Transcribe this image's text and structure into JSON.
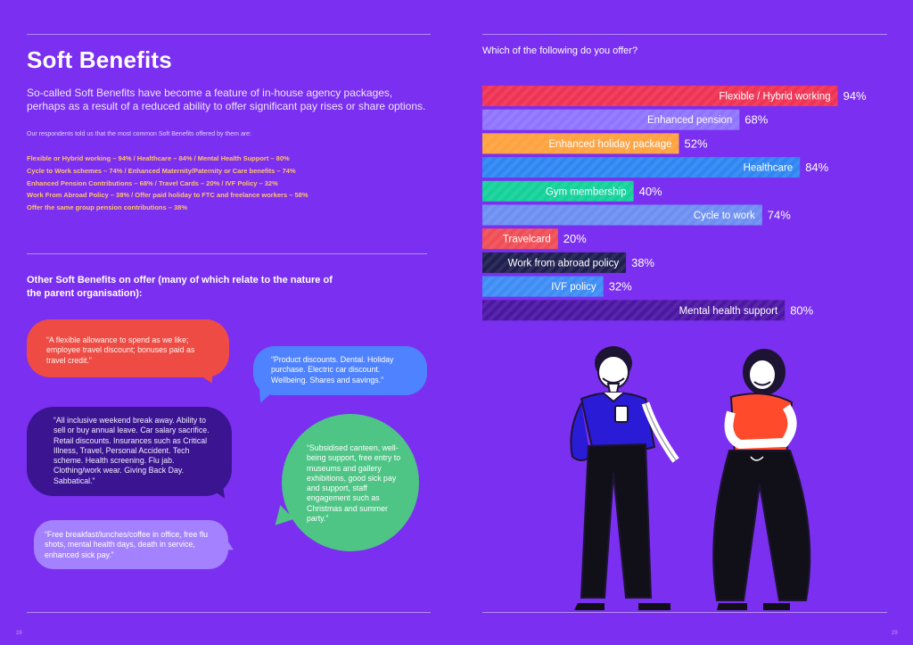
{
  "page": {
    "title": "Soft Benefits",
    "intro": "So-called Soft Benefits have become a feature of in-house agency packages, perhaps as a result of a reduced ability to offer significant pay rises or share options.",
    "respondents_note": "Our respondents told us that the most common Soft Benefits offered by them are:",
    "stats_lines": [
      "Flexible or Hybrid working – 94% / Healthcare – 84% / Mental Health Support – 80%",
      "Cycle to Work schemes – 74% / Enhanced Maternity/Paternity or Care benefits – 74%",
      "Enhanced Pension Contributions – 68% / Travel Cards – 20% / IVF Policy – 32%",
      "Work From Abroad Policy – 38% / Offer paid holiday to FTC and freelance workers – 58%",
      "Offer the same group pension contributions – 38%"
    ],
    "other_heading": "Other Soft Benefits on offer (many of which relate to the nature of the parent organisation):",
    "quotes": [
      "“A flexible allowance to spend as we like; employee travel discount; bonuses paid as travel credit.”",
      "“Product discounts. Dental. Holiday purchase. Electric car discount. Wellbeing. Shares and savings.”",
      "“All inclusive weekend break away. Ability to sell or buy annual leave. Car salary sacrifice. Retail discounts. Insurances such as Critical Illness, Travel, Personal Accident. Tech scheme. Health screening. Flu jab. Clothing/work wear. Giving Back Day. Sabbatical.”",
      "“Subsidised canteen, well-being support, free entry to museums and gallery exhibitions, good sick pay and support, staff engagement such as Christmas and summer party.”",
      "“Free breakfast/lunches/coffee in office, free flu shots, mental health days, death in service, enhanced sick pay.”"
    ],
    "page_numbers": [
      "28",
      "29"
    ]
  },
  "colors": {
    "background": "#7b2ff0",
    "stats_text": "#ffc36b",
    "bubble_red": "#ef4b45",
    "bubble_blue": "#4f82ff",
    "bubble_indigo": "#3b1591",
    "bubble_green": "#4ec585",
    "bubble_lavender": "#a482ff"
  },
  "chart_data": {
    "type": "bar",
    "orientation": "horizontal",
    "title": "Which of the following do you offer?",
    "categories": [
      "Flexible / Hybrid working",
      "Enhanced pension",
      "Enhanced holiday package",
      "Healthcare",
      "Gym membership",
      "Cycle to work",
      "Travelcard",
      "Work from abroad policy",
      "IVF policy",
      "Mental health support"
    ],
    "values": [
      94,
      68,
      52,
      84,
      40,
      74,
      20,
      38,
      32,
      80
    ],
    "value_labels": [
      "94%",
      "68%",
      "52%",
      "84%",
      "40%",
      "74%",
      "20%",
      "38%",
      "32%",
      "80%"
    ],
    "bar_colors": [
      "#ef3354",
      "#8f74ff",
      "#ffa23f",
      "#2f86f2",
      "#14d19a",
      "#6d8ff2",
      "#f04e55",
      "#1e1f4f",
      "#3d8df5",
      "#4b16a3"
    ],
    "xlim": [
      0,
      100
    ],
    "grid": false,
    "legend": "none"
  }
}
